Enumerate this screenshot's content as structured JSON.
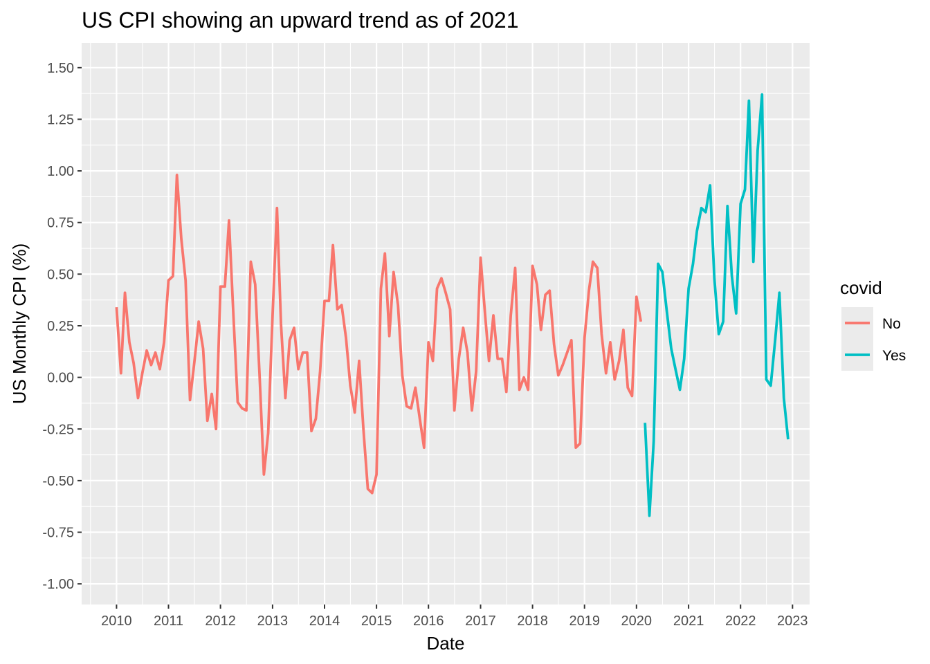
{
  "chart_data": {
    "type": "line",
    "title": "US CPI showing an upward trend as of 2021",
    "xlabel": "Date",
    "ylabel": "US Monthly CPI (%)",
    "xlim": [
      "2009-05-01",
      "2023-05-01"
    ],
    "ylim": [
      -1.1,
      1.62
    ],
    "x_ticks": [
      "2010",
      "2011",
      "2012",
      "2013",
      "2014",
      "2015",
      "2016",
      "2017",
      "2018",
      "2019",
      "2020",
      "2021",
      "2022",
      "2023"
    ],
    "y_ticks": [
      "-1.00",
      "-0.75",
      "-0.50",
      "-0.25",
      "0.00",
      "0.25",
      "0.50",
      "0.75",
      "1.00",
      "1.25",
      "1.50"
    ],
    "grid": true,
    "legend": {
      "title": "covid",
      "position": "right",
      "entries": [
        {
          "label": "No",
          "color": "#F8766D"
        },
        {
          "label": "Yes",
          "color": "#00BFC4"
        }
      ]
    },
    "series": [
      {
        "name": "No",
        "color": "#F8766D",
        "x": [
          "2010-01",
          "2010-02",
          "2010-03",
          "2010-04",
          "2010-05",
          "2010-06",
          "2010-07",
          "2010-08",
          "2010-09",
          "2010-10",
          "2010-11",
          "2010-12",
          "2011-01",
          "2011-02",
          "2011-03",
          "2011-04",
          "2011-05",
          "2011-06",
          "2011-07",
          "2011-08",
          "2011-09",
          "2011-10",
          "2011-11",
          "2011-12",
          "2012-01",
          "2012-02",
          "2012-03",
          "2012-04",
          "2012-05",
          "2012-06",
          "2012-07",
          "2012-08",
          "2012-09",
          "2012-10",
          "2012-11",
          "2012-12",
          "2013-01",
          "2013-02",
          "2013-03",
          "2013-04",
          "2013-05",
          "2013-06",
          "2013-07",
          "2013-08",
          "2013-09",
          "2013-10",
          "2013-11",
          "2013-12",
          "2014-01",
          "2014-02",
          "2014-03",
          "2014-04",
          "2014-05",
          "2014-06",
          "2014-07",
          "2014-08",
          "2014-09",
          "2014-10",
          "2014-11",
          "2014-12",
          "2015-01",
          "2015-02",
          "2015-03",
          "2015-04",
          "2015-05",
          "2015-06",
          "2015-07",
          "2015-08",
          "2015-09",
          "2015-10",
          "2015-11",
          "2015-12",
          "2016-01",
          "2016-02",
          "2016-03",
          "2016-04",
          "2016-05",
          "2016-06",
          "2016-07",
          "2016-08",
          "2016-09",
          "2016-10",
          "2016-11",
          "2016-12",
          "2017-01",
          "2017-02",
          "2017-03",
          "2017-04",
          "2017-05",
          "2017-06",
          "2017-07",
          "2017-08",
          "2017-09",
          "2017-10",
          "2017-11",
          "2017-12",
          "2018-01",
          "2018-02",
          "2018-03",
          "2018-04",
          "2018-05",
          "2018-06",
          "2018-07",
          "2018-08",
          "2018-09",
          "2018-10",
          "2018-11",
          "2018-12",
          "2019-01",
          "2019-02",
          "2019-03",
          "2019-04",
          "2019-05",
          "2019-06",
          "2019-07",
          "2019-08",
          "2019-09",
          "2019-10",
          "2019-11",
          "2019-12",
          "2020-01",
          "2020-02"
        ],
        "values": [
          0.34,
          0.02,
          0.41,
          0.17,
          0.07,
          -0.1,
          0.02,
          0.13,
          0.06,
          0.12,
          0.04,
          0.17,
          0.47,
          0.49,
          0.98,
          0.67,
          0.47,
          -0.11,
          0.07,
          0.27,
          0.14,
          -0.21,
          -0.08,
          -0.25,
          0.44,
          0.44,
          0.76,
          0.3,
          -0.12,
          -0.15,
          -0.16,
          0.56,
          0.45,
          0.02,
          -0.47,
          -0.27,
          0.3,
          0.82,
          0.26,
          -0.1,
          0.18,
          0.24,
          0.04,
          0.12,
          0.12,
          -0.26,
          -0.2,
          0.03,
          0.37,
          0.37,
          0.64,
          0.33,
          0.35,
          0.19,
          -0.04,
          -0.17,
          0.08,
          -0.25,
          -0.54,
          -0.56,
          -0.47,
          0.43,
          0.6,
          0.2,
          0.51,
          0.35,
          0.01,
          -0.14,
          -0.15,
          -0.05,
          -0.2,
          -0.34,
          0.17,
          0.08,
          0.43,
          0.48,
          0.41,
          0.33,
          -0.16,
          0.09,
          0.24,
          0.12,
          -0.16,
          0.03,
          0.58,
          0.31,
          0.08,
          0.3,
          0.09,
          0.09,
          -0.07,
          0.3,
          0.53,
          -0.06,
          0.0,
          -0.06,
          0.54,
          0.45,
          0.23,
          0.4,
          0.42,
          0.16,
          0.01,
          0.06,
          0.12,
          0.18,
          -0.34,
          -0.32,
          0.19,
          0.42,
          0.56,
          0.53,
          0.21,
          0.02,
          0.17,
          -0.01,
          0.08,
          0.23,
          -0.05,
          -0.09,
          0.39,
          0.27
        ]
      },
      {
        "name": "Yes",
        "color": "#00BFC4",
        "x": [
          "2020-03",
          "2020-04",
          "2020-05",
          "2020-06",
          "2020-07",
          "2020-08",
          "2020-09",
          "2020-10",
          "2020-11",
          "2020-12",
          "2021-01",
          "2021-02",
          "2021-03",
          "2021-04",
          "2021-05",
          "2021-06",
          "2021-07",
          "2021-08",
          "2021-09",
          "2021-10",
          "2021-11",
          "2021-12",
          "2022-01",
          "2022-02",
          "2022-03",
          "2022-04",
          "2022-05",
          "2022-06",
          "2022-07",
          "2022-08",
          "2022-09",
          "2022-10",
          "2022-11",
          "2022-12"
        ],
        "values": [
          -0.22,
          -0.67,
          -0.31,
          0.55,
          0.51,
          0.32,
          0.14,
          0.04,
          -0.06,
          0.09,
          0.43,
          0.55,
          0.71,
          0.82,
          0.8,
          0.93,
          0.48,
          0.21,
          0.27,
          0.83,
          0.49,
          0.31,
          0.84,
          0.91,
          1.34,
          0.56,
          1.1,
          1.37,
          -0.01,
          -0.04,
          0.18,
          0.41,
          -0.1,
          -0.3
        ]
      }
    ]
  }
}
